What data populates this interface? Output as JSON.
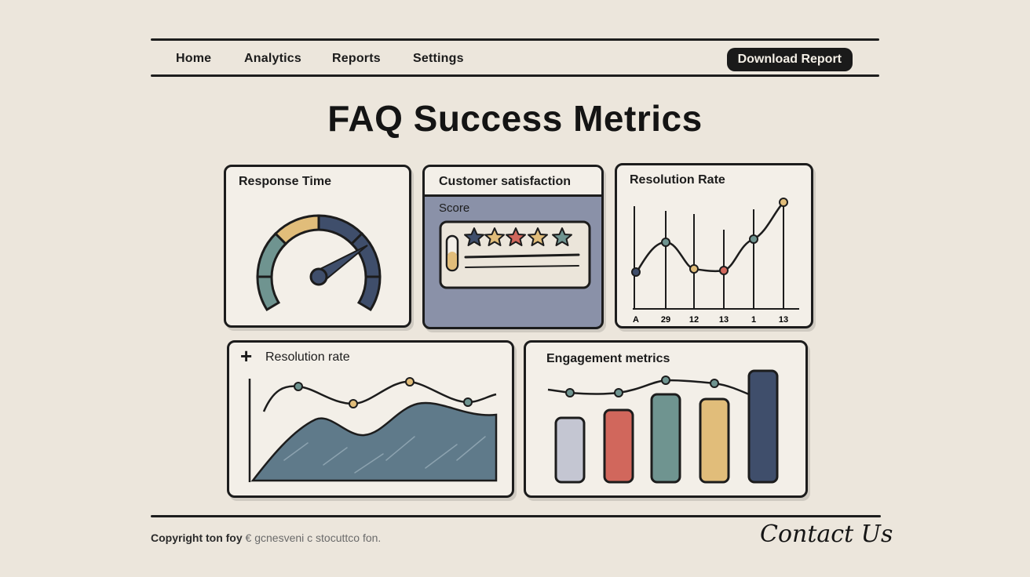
{
  "nav": {
    "items": [
      "Home",
      "Analytics",
      "Reports",
      "Settings"
    ],
    "download_label": "Download Report"
  },
  "page_title": "FAQ Success Metrics",
  "cards": {
    "response_time": {
      "title": "Response Time"
    },
    "csat": {
      "title": "Customer satisfaction",
      "subtitle": "Score"
    },
    "resolution_top": {
      "title": "Resolution Rate",
      "x_labels": [
        "A",
        "29",
        "12",
        "13",
        "1",
        "13"
      ]
    },
    "resolution_bottom": {
      "title": "Resolution rate",
      "add_symbol": "+"
    },
    "engagement": {
      "title": "Engagement metrics"
    }
  },
  "footer": {
    "copyright": "Copyright ton foy",
    "copyright_muted": "€ gcnesveni c stocuttco fon.",
    "contact": "Contact Us"
  },
  "colors": {
    "background": "#ece6dc",
    "navy": "#3f4e6b",
    "slate": "#5f7a8a",
    "teal": "#6f9490",
    "sand": "#e1bd7a",
    "coral": "#d1675c",
    "lavender": "#8c93aa"
  }
}
